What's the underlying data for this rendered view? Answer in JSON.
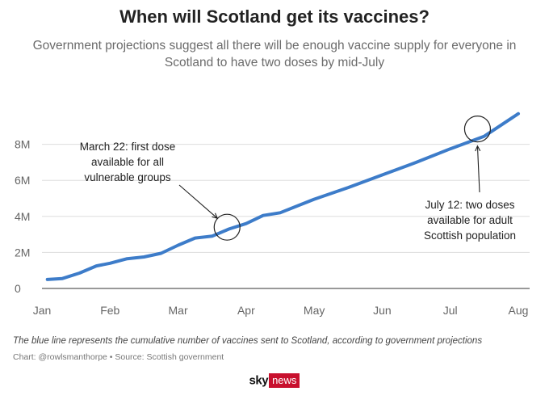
{
  "chart_data": {
    "type": "line",
    "title": "When will Scotland get its vaccines?",
    "subtitle": "Government projections suggest all there will be enough vaccine supply for everyone in Scotland to have two doses by mid-July",
    "xlabel": "",
    "ylabel": "",
    "x_ticks": [
      "Jan",
      "Feb",
      "Mar",
      "Apr",
      "May",
      "Jun",
      "Jul",
      "Aug"
    ],
    "y_ticks": [
      {
        "value": 0,
        "label": "0"
      },
      {
        "value": 2,
        "label": "2M"
      },
      {
        "value": 4,
        "label": "4M"
      },
      {
        "value": 6,
        "label": "6M"
      },
      {
        "value": 8,
        "label": "8M"
      }
    ],
    "xlim": [
      0,
      7
    ],
    "ylim": [
      0,
      10
    ],
    "y_unit": "millions",
    "grid": "horizontal",
    "series": [
      {
        "color": "#3d7cc9",
        "x": [
          0.08,
          0.3,
          0.55,
          0.8,
          1.0,
          1.25,
          1.5,
          1.75,
          2.0,
          2.25,
          2.5,
          2.75,
          3.0,
          3.25,
          3.5,
          4.0,
          4.5,
          5.0,
          5.5,
          6.0,
          6.5,
          7.0
        ],
        "values": [
          0.5,
          0.55,
          0.85,
          1.25,
          1.4,
          1.65,
          1.75,
          1.95,
          2.4,
          2.8,
          2.9,
          3.3,
          3.6,
          4.05,
          4.2,
          4.95,
          5.6,
          6.3,
          7.0,
          7.75,
          8.45,
          9.7
        ]
      }
    ],
    "annotations": [
      {
        "lines": [
          "March 22: first dose",
          "available for all",
          "vulnerable groups"
        ],
        "point": {
          "x": 2.72,
          "y": 3.4
        }
      },
      {
        "lines": [
          "July 12: two doses",
          "available for adult",
          "Scottish population"
        ],
        "point": {
          "x": 6.4,
          "y": 8.85
        }
      }
    ]
  },
  "footnote": "The blue line represents the cumulative number of vaccines sent to Scotland, according to government projections",
  "source": "Chart: @rowlsmanthorpe • Source: Scottish government",
  "brand": {
    "sky": "sky",
    "news": "news"
  }
}
